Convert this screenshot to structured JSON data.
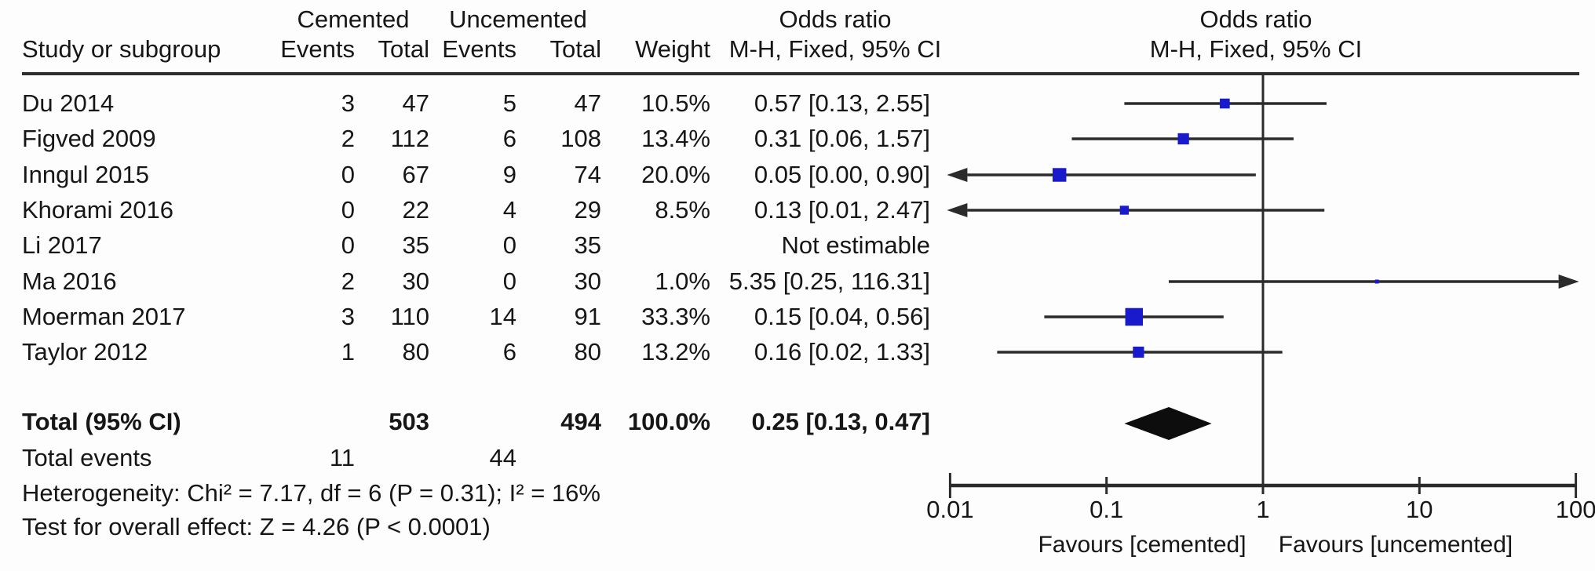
{
  "header": {
    "group_cemented": "Cemented",
    "group_uncemented": "Uncemented",
    "odds_ratio_text_col": "Odds ratio",
    "odds_ratio_plot_col": "Odds ratio",
    "study_col": "Study or subgroup",
    "events_col_1": "Events",
    "total_col_1": "Total",
    "events_col_2": "Events",
    "total_col_2": "Total",
    "weight_col": "Weight",
    "method_text_col": "M-H, Fixed, 95% CI",
    "method_plot_col": "M-H, Fixed, 95% CI"
  },
  "rows": [
    {
      "name": "Du 2014",
      "events_cemented": "3",
      "total_cemented": "47",
      "events_uncemented": "5",
      "total_uncemented": "47",
      "weight": "10.5%",
      "or_ci_text": "0.57 [0.13, 2.55]",
      "or": 0.57,
      "ci_low": 0.13,
      "ci_high": 2.55,
      "weight_pct": 10.5,
      "estimable": true
    },
    {
      "name": "Figved 2009",
      "events_cemented": "2",
      "total_cemented": "112",
      "events_uncemented": "6",
      "total_uncemented": "108",
      "weight": "13.4%",
      "or_ci_text": "0.31 [0.06, 1.57]",
      "or": 0.31,
      "ci_low": 0.06,
      "ci_high": 1.57,
      "weight_pct": 13.4,
      "estimable": true
    },
    {
      "name": "Inngul 2015",
      "events_cemented": "0",
      "total_cemented": "67",
      "events_uncemented": "9",
      "total_uncemented": "74",
      "weight": "20.0%",
      "or_ci_text": "0.05 [0.00, 0.90]",
      "or": 0.05,
      "ci_low": 0.0,
      "ci_high": 0.9,
      "weight_pct": 20.0,
      "estimable": true
    },
    {
      "name": "Khorami 2016",
      "events_cemented": "0",
      "total_cemented": "22",
      "events_uncemented": "4",
      "total_uncemented": "29",
      "weight": "8.5%",
      "or_ci_text": "0.13 [0.01, 2.47]",
      "or": 0.13,
      "ci_low": 0.01,
      "ci_high": 2.47,
      "weight_pct": 8.5,
      "estimable": true
    },
    {
      "name": "Li 2017",
      "events_cemented": "0",
      "total_cemented": "35",
      "events_uncemented": "0",
      "total_uncemented": "35",
      "weight": "",
      "or_ci_text": "Not estimable",
      "or": null,
      "ci_low": null,
      "ci_high": null,
      "weight_pct": 0,
      "estimable": false
    },
    {
      "name": "Ma 2016",
      "events_cemented": "2",
      "total_cemented": "30",
      "events_uncemented": "0",
      "total_uncemented": "30",
      "weight": "1.0%",
      "or_ci_text": "5.35 [0.25, 116.31]",
      "or": 5.35,
      "ci_low": 0.25,
      "ci_high": 116.31,
      "weight_pct": 1.0,
      "estimable": true
    },
    {
      "name": "Moerman 2017",
      "events_cemented": "3",
      "total_cemented": "110",
      "events_uncemented": "14",
      "total_uncemented": "91",
      "weight": "33.3%",
      "or_ci_text": "0.15 [0.04, 0.56]",
      "or": 0.15,
      "ci_low": 0.04,
      "ci_high": 0.56,
      "weight_pct": 33.3,
      "estimable": true
    },
    {
      "name": "Taylor 2012",
      "events_cemented": "1",
      "total_cemented": "80",
      "events_uncemented": "6",
      "total_uncemented": "80",
      "weight": "13.2%",
      "or_ci_text": "0.16 [0.02, 1.33]",
      "or": 0.16,
      "ci_low": 0.02,
      "ci_high": 1.33,
      "weight_pct": 13.2,
      "estimable": true
    }
  ],
  "total_row": {
    "label": "Total (95% CI)",
    "total_cemented": "503",
    "total_uncemented": "494",
    "weight": "100.0%",
    "or_ci_text": "0.25 [0.13, 0.47]",
    "or": 0.25,
    "ci_low": 0.13,
    "ci_high": 0.47
  },
  "total_events_row": {
    "label": "Total events",
    "events_cemented": "11",
    "events_uncemented": "44"
  },
  "footnotes": {
    "heterogeneity": "Heterogeneity: Chi² = 7.17, df = 6 (P = 0.31); I² = 16%",
    "overall_effect": "Test for overall effect: Z = 4.26 (P < 0.0001)"
  },
  "axis": {
    "tick_labels": [
      "0.01",
      "0.1",
      "1",
      "10",
      "100"
    ],
    "tick_values": [
      0.01,
      0.1,
      1,
      10,
      100
    ],
    "min": 0.01,
    "max": 100,
    "left_label": "Favours [cemented]",
    "right_label": "Favours [uncemented]"
  },
  "colors": {
    "marker_blue": "#1a1acd",
    "line_black": "#2b2b2b",
    "text_black": "#161616",
    "diamond_black": "#0d0d0d"
  },
  "chart_data": {
    "type": "scatter",
    "subtype": "forest-plot",
    "title": "Odds ratio",
    "effect_measure": "M-H, Fixed, 95% CI",
    "x_scale": "log10",
    "x_range": [
      0.01,
      100
    ],
    "x_ticks": [
      0.01,
      0.1,
      1,
      10,
      100
    ],
    "null_line": 1,
    "left_direction_label": "Favours [cemented]",
    "right_direction_label": "Favours [uncemented]",
    "studies": [
      {
        "name": "Du 2014",
        "or": 0.57,
        "ci": [
          0.13,
          2.55
        ],
        "weight_pct": 10.5
      },
      {
        "name": "Figved 2009",
        "or": 0.31,
        "ci": [
          0.06,
          1.57
        ],
        "weight_pct": 13.4
      },
      {
        "name": "Inngul 2015",
        "or": 0.05,
        "ci": [
          0.0,
          0.9
        ],
        "weight_pct": 20.0
      },
      {
        "name": "Khorami 2016",
        "or": 0.13,
        "ci": [
          0.01,
          2.47
        ],
        "weight_pct": 8.5
      },
      {
        "name": "Li 2017",
        "or": null,
        "ci": null,
        "weight_pct": null,
        "note": "Not estimable"
      },
      {
        "name": "Ma 2016",
        "or": 5.35,
        "ci": [
          0.25,
          116.31
        ],
        "weight_pct": 1.0
      },
      {
        "name": "Moerman 2017",
        "or": 0.15,
        "ci": [
          0.04,
          0.56
        ],
        "weight_pct": 33.3
      },
      {
        "name": "Taylor 2012",
        "or": 0.16,
        "ci": [
          0.02,
          1.33
        ],
        "weight_pct": 13.2
      }
    ],
    "summary": {
      "or": 0.25,
      "ci": [
        0.13,
        0.47
      ],
      "weight_pct": 100.0
    },
    "heterogeneity": {
      "chi2": 7.17,
      "df": 6,
      "p": 0.31,
      "i2_pct": 16
    },
    "overall_effect": {
      "z": 4.26,
      "p": "< 0.0001"
    }
  }
}
